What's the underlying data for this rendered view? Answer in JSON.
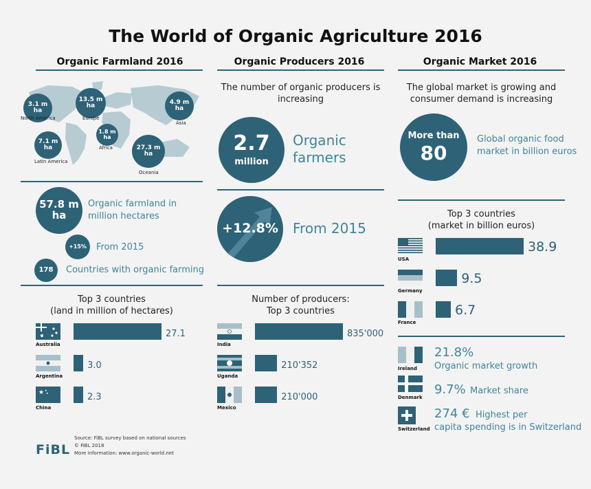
{
  "title": "The World of Organic Agriculture 2016",
  "colors": {
    "accent": "#2e6276",
    "accent_text": "#3f8499",
    "background": "#f3f3f3"
  },
  "farmland": {
    "header": "Organic Farmland 2016",
    "regions": [
      {
        "value": "3.1 m",
        "unit": "ha",
        "name": "North America"
      },
      {
        "value": "13.5 m",
        "unit": "ha",
        "name": "Europe"
      },
      {
        "value": "4.9 m",
        "unit": "ha",
        "name": "Asia"
      },
      {
        "value": "1.8 m",
        "unit": "ha",
        "name": "Africa"
      },
      {
        "value": "7.1 m",
        "unit": "ha",
        "name": "Latin America"
      },
      {
        "value": "27.3 m",
        "unit": "ha",
        "name": "Oceania"
      }
    ],
    "total_value": "57.8 m",
    "total_unit": "ha",
    "total_label_1": "Organic farmland in",
    "total_label_2": "million hectares",
    "growth_value": "+15%",
    "growth_label": "From 2015",
    "countries_value": "178",
    "countries_label": "Countries with organic farming",
    "top_title_1": "Top 3 countries",
    "top_title_2": "(land in million of hectares)"
  },
  "producers": {
    "header": "Organic Producers 2016",
    "subtitle_1": "The number of organic producers is",
    "subtitle_2": "increasing",
    "main_value": "2.7",
    "main_unit": "million",
    "main_label_1": "Organic",
    "main_label_2": "farmers",
    "growth_value": "+12.8%",
    "growth_label": "From 2015",
    "top_title_1": "Number of producers:",
    "top_title_2": "Top 3 countries"
  },
  "market": {
    "header": "Organic Market 2016",
    "subtitle_1": "The global market is growing and",
    "subtitle_2": "consumer demand is increasing",
    "main_prefix": "More than",
    "main_value": "80",
    "main_label_1": "Global organic food",
    "main_label_2": "market in billion euros",
    "top_title_1": "Top 3 countries",
    "top_title_2": "(market in billion euros)",
    "facts": [
      {
        "country": "Ireland",
        "value": "21.8%",
        "label": "Organic market growth"
      },
      {
        "country": "Denmark",
        "value": "9.7%",
        "label": "Market share"
      },
      {
        "country": "Switzerland",
        "value": "274 €",
        "label": "Highest per",
        "label_2": "capita spending is in Switzerland"
      }
    ]
  },
  "footer": {
    "logo": "FiBL",
    "source": "Source: FiBL survey based on national sources",
    "copyright": "© FiBL 2018",
    "more": "More information: www.organic-world.net"
  },
  "chart_data": [
    {
      "type": "bar",
      "title": "Top 3 countries (land in million of hectares)",
      "categories": [
        "Australia",
        "Argentina",
        "China"
      ],
      "values": [
        27.1,
        3.0,
        2.3
      ],
      "labels": [
        "27.1",
        "3.0",
        "2.3"
      ],
      "flags": [
        "australia-flag-icon",
        "argentina-flag-icon",
        "china-flag-icon"
      ]
    },
    {
      "type": "bar",
      "title": "Number of producers: Top 3 countries",
      "categories": [
        "India",
        "Uganda",
        "Mexico"
      ],
      "values": [
        835000,
        210352,
        210000
      ],
      "labels": [
        "835'000",
        "210'352",
        "210'000"
      ],
      "flags": [
        "india-flag-icon",
        "uganda-flag-icon",
        "mexico-flag-icon"
      ]
    },
    {
      "type": "bar",
      "title": "Top 3 countries (market in billion euros)",
      "categories": [
        "USA",
        "Germany",
        "France"
      ],
      "values": [
        38.9,
        9.5,
        6.7
      ],
      "labels": [
        "38.9",
        "9.5",
        "6.7"
      ],
      "flags": [
        "usa-flag-icon",
        "germany-flag-icon",
        "france-flag-icon"
      ]
    }
  ]
}
